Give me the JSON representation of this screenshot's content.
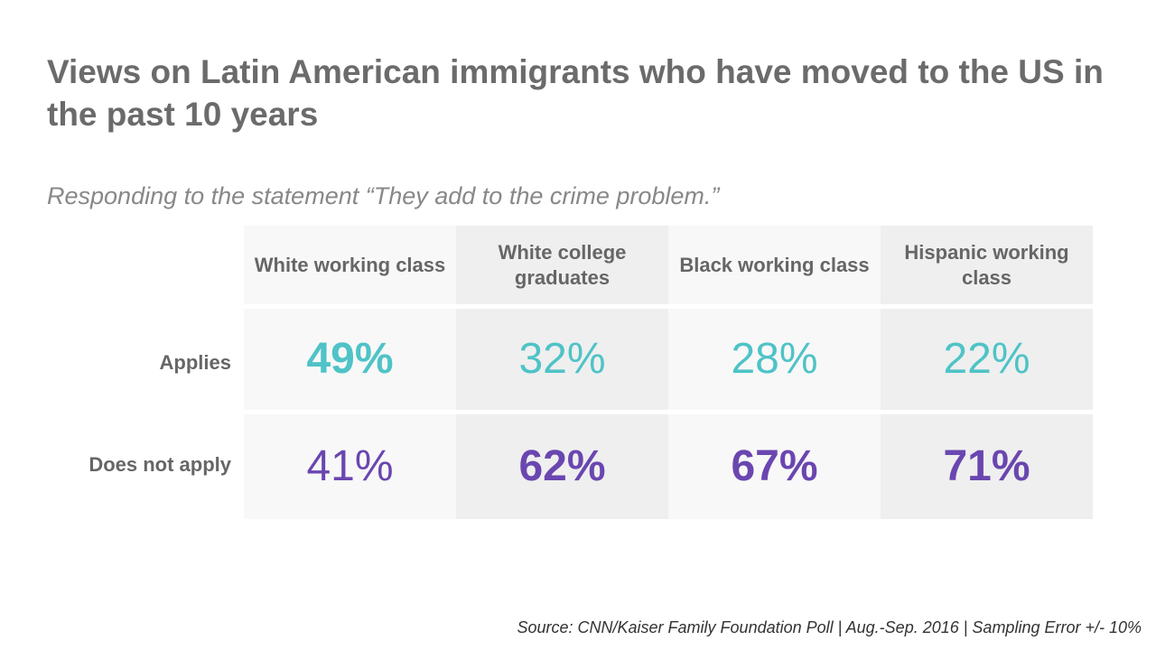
{
  "title": "Views on Latin American immigrants who have moved to the US in the past 10 years",
  "subtitle": "Responding to the statement “They add to the crime problem.”",
  "source": "Source: CNN/Kaiser Family Foundation Poll | Aug.-Sep. 2016 | Sampling Error +/- 10%",
  "colors": {
    "applies": "#4fc3c7",
    "does_not_apply": "#6a46b0",
    "header_text": "#666666",
    "title_text": "#6b6b6b"
  },
  "chart_data": {
    "type": "table",
    "title": "Views on Latin American immigrants who have moved to the US in the past 10 years",
    "subtitle": "Responding to the statement “They add to the crime problem.”",
    "columns": [
      "White working class",
      "White college graduates",
      "Black working class",
      "Hispanic working class"
    ],
    "rows": [
      {
        "label": "Applies",
        "values": [
          "49%",
          "32%",
          "28%",
          "22%"
        ],
        "numeric": [
          49,
          32,
          28,
          22
        ],
        "emphasized": [
          true,
          false,
          false,
          false
        ]
      },
      {
        "label": "Does not apply",
        "values": [
          "41%",
          "62%",
          "67%",
          "71%"
        ],
        "numeric": [
          41,
          62,
          67,
          71
        ],
        "emphasized": [
          false,
          true,
          true,
          true
        ]
      }
    ]
  }
}
